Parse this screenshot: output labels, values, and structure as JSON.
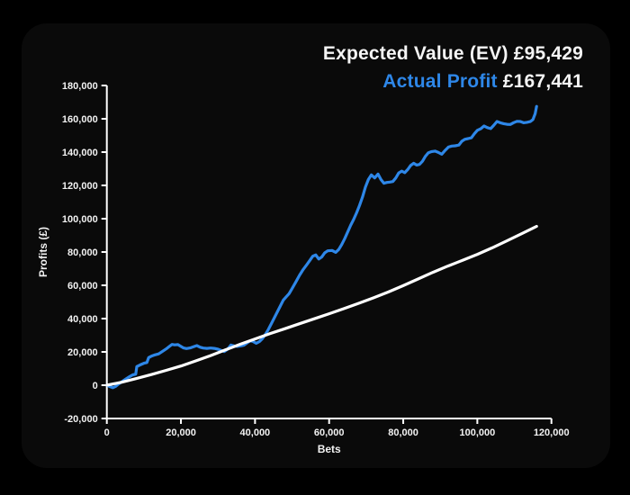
{
  "legend": {
    "ev_label": "Expected Value (EV)",
    "ev_value": "£95,429",
    "profit_label": "Actual Profit",
    "profit_value": "£167,441"
  },
  "colors": {
    "background": "#000000",
    "panel": "#0a0a0a",
    "axis": "#ffffff",
    "tick_text": "#f2f2f2",
    "ev_line": "#ffffff",
    "profit_line": "#2e87e8"
  },
  "chart_data": {
    "type": "line",
    "title": "",
    "xlabel": "Bets",
    "ylabel": "Profits (£)",
    "xlim": [
      0,
      120000
    ],
    "ylim": [
      -20000,
      180000
    ],
    "x_ticks": [
      0,
      20000,
      40000,
      60000,
      80000,
      100000,
      120000
    ],
    "y_ticks": [
      -20000,
      0,
      20000,
      40000,
      60000,
      80000,
      100000,
      120000,
      140000,
      160000,
      180000
    ],
    "grid": false,
    "legend_position": "top-right",
    "series": [
      {
        "name": "Actual Profit",
        "color": "#2e87e8",
        "final_value": 167441,
        "points": [
          [
            0,
            0
          ],
          [
            800,
            -800
          ],
          [
            1600,
            -1500
          ],
          [
            2400,
            -700
          ],
          [
            3200,
            800
          ],
          [
            4000,
            2000
          ],
          [
            5000,
            3500
          ],
          [
            6000,
            5000
          ],
          [
            7000,
            6200
          ],
          [
            7800,
            6600
          ],
          [
            8100,
            11200
          ],
          [
            9000,
            12200
          ],
          [
            10000,
            13200
          ],
          [
            10800,
            13600
          ],
          [
            11300,
            16600
          ],
          [
            12000,
            17400
          ],
          [
            13000,
            18200
          ],
          [
            14000,
            18800
          ],
          [
            15000,
            20300
          ],
          [
            16000,
            21800
          ],
          [
            17000,
            23500
          ],
          [
            17600,
            24500
          ],
          [
            18300,
            24200
          ],
          [
            19200,
            24400
          ],
          [
            20100,
            23200
          ],
          [
            20700,
            22400
          ],
          [
            21500,
            22000
          ],
          [
            22500,
            22400
          ],
          [
            23500,
            23200
          ],
          [
            24300,
            23800
          ],
          [
            25200,
            22800
          ],
          [
            26000,
            22300
          ],
          [
            27000,
            22100
          ],
          [
            28000,
            22300
          ],
          [
            29000,
            22100
          ],
          [
            30000,
            21600
          ],
          [
            30800,
            20900
          ],
          [
            31700,
            20200
          ],
          [
            32600,
            21700
          ],
          [
            33500,
            24100
          ],
          [
            34300,
            23600
          ],
          [
            35200,
            23300
          ],
          [
            36200,
            23600
          ],
          [
            37000,
            24000
          ],
          [
            37800,
            25300
          ],
          [
            38700,
            26700
          ],
          [
            39500,
            26200
          ],
          [
            40300,
            25200
          ],
          [
            41200,
            26200
          ],
          [
            42000,
            28000
          ],
          [
            42800,
            30500
          ],
          [
            43600,
            33500
          ],
          [
            44400,
            37000
          ],
          [
            45200,
            40500
          ],
          [
            46000,
            44000
          ],
          [
            46800,
            47500
          ],
          [
            47600,
            51000
          ],
          [
            48400,
            53000
          ],
          [
            49200,
            55000
          ],
          [
            50000,
            58000
          ],
          [
            51000,
            62000
          ],
          [
            52000,
            66000
          ],
          [
            53000,
            69500
          ],
          [
            54000,
            72500
          ],
          [
            54800,
            75000
          ],
          [
            55600,
            77500
          ],
          [
            56400,
            78200
          ],
          [
            57200,
            75800
          ],
          [
            58000,
            77000
          ],
          [
            58800,
            79500
          ],
          [
            59600,
            80700
          ],
          [
            60800,
            80900
          ],
          [
            61800,
            79800
          ],
          [
            62600,
            81500
          ],
          [
            63400,
            84500
          ],
          [
            64200,
            88000
          ],
          [
            65000,
            92000
          ],
          [
            65800,
            96000
          ],
          [
            66600,
            99500
          ],
          [
            67400,
            103500
          ],
          [
            68200,
            108000
          ],
          [
            69000,
            113000
          ],
          [
            69800,
            119000
          ],
          [
            70600,
            123500
          ],
          [
            71400,
            126300
          ],
          [
            72300,
            124500
          ],
          [
            73200,
            126800
          ],
          [
            74000,
            123500
          ],
          [
            74800,
            121300
          ],
          [
            75600,
            121800
          ],
          [
            76400,
            122000
          ],
          [
            77200,
            122300
          ],
          [
            78000,
            124500
          ],
          [
            78800,
            127500
          ],
          [
            79600,
            128600
          ],
          [
            80400,
            127600
          ],
          [
            81200,
            129500
          ],
          [
            82000,
            132000
          ],
          [
            82800,
            133300
          ],
          [
            83600,
            132200
          ],
          [
            84400,
            132600
          ],
          [
            85200,
            134500
          ],
          [
            86000,
            137500
          ],
          [
            86800,
            139600
          ],
          [
            87700,
            140300
          ],
          [
            88600,
            140600
          ],
          [
            89500,
            139800
          ],
          [
            90400,
            138700
          ],
          [
            91300,
            141000
          ],
          [
            92200,
            143000
          ],
          [
            93100,
            143600
          ],
          [
            94000,
            143800
          ],
          [
            95000,
            144200
          ],
          [
            95800,
            146500
          ],
          [
            96600,
            147700
          ],
          [
            97500,
            148100
          ],
          [
            98400,
            148600
          ],
          [
            99200,
            151000
          ],
          [
            100000,
            153100
          ],
          [
            100900,
            154000
          ],
          [
            101800,
            155700
          ],
          [
            102700,
            154700
          ],
          [
            103600,
            154100
          ],
          [
            104400,
            156000
          ],
          [
            105300,
            158400
          ],
          [
            106200,
            157600
          ],
          [
            107100,
            157100
          ],
          [
            108000,
            156700
          ],
          [
            108900,
            156600
          ],
          [
            109800,
            157700
          ],
          [
            110700,
            158500
          ],
          [
            111600,
            158400
          ],
          [
            112500,
            157600
          ],
          [
            113400,
            157900
          ],
          [
            114300,
            158300
          ],
          [
            115000,
            159500
          ],
          [
            115600,
            163000
          ],
          [
            116000,
            167441
          ]
        ]
      },
      {
        "name": "Expected Value (EV)",
        "color": "#ffffff",
        "final_value": 95429,
        "points": [
          [
            0,
            0
          ],
          [
            4000,
            1800
          ],
          [
            8000,
            4000
          ],
          [
            12000,
            6400
          ],
          [
            16000,
            8900
          ],
          [
            20000,
            11500
          ],
          [
            24000,
            14600
          ],
          [
            28000,
            17800
          ],
          [
            32000,
            21200
          ],
          [
            36000,
            24600
          ],
          [
            40000,
            27800
          ],
          [
            44000,
            30900
          ],
          [
            48000,
            33900
          ],
          [
            52000,
            36900
          ],
          [
            56000,
            39900
          ],
          [
            60000,
            42900
          ],
          [
            64000,
            46000
          ],
          [
            68000,
            49200
          ],
          [
            72000,
            52500
          ],
          [
            76000,
            56000
          ],
          [
            80000,
            59800
          ],
          [
            84000,
            63800
          ],
          [
            88000,
            67800
          ],
          [
            92000,
            71500
          ],
          [
            96000,
            75000
          ],
          [
            100000,
            78600
          ],
          [
            104000,
            82500
          ],
          [
            108000,
            86700
          ],
          [
            112000,
            91000
          ],
          [
            116000,
            95429
          ]
        ]
      }
    ]
  }
}
